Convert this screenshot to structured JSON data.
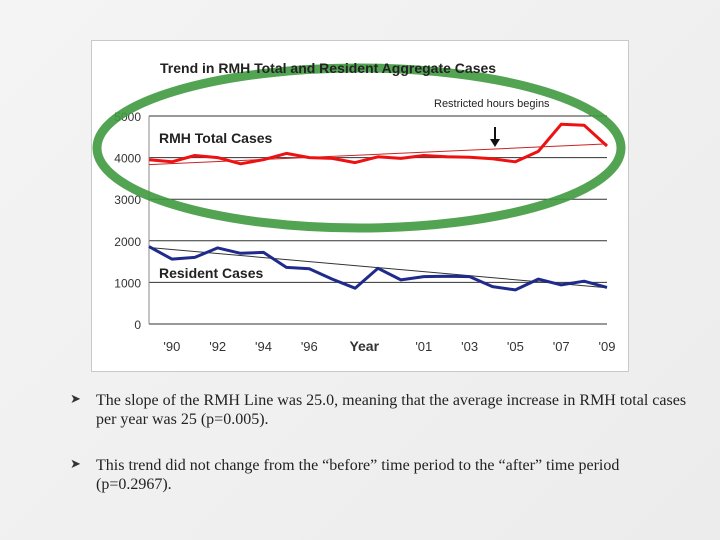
{
  "chart_data": {
    "type": "line",
    "title": "Trend in RMH Total and Resident Aggregate Cases",
    "xlabel": "Year",
    "ylabel": "",
    "x": [
      1989,
      1990,
      1991,
      1992,
      1993,
      1994,
      1995,
      1996,
      1997,
      1998,
      1999,
      2000,
      2001,
      2002,
      2003,
      2004,
      2005,
      2006,
      2007,
      2008,
      2009
    ],
    "x_tick_labels": [
      "'90",
      "'92",
      "'94",
      "'96",
      "Year",
      "'01",
      "'03",
      "'05",
      "'07",
      "'09"
    ],
    "y_ticks": [
      "5000",
      "4000",
      "3000",
      "2000",
      "1000",
      "0"
    ],
    "ylim": [
      0,
      5000
    ],
    "grid": true,
    "series": [
      {
        "name": "RMH Total Cases",
        "color": "#ee1111",
        "values": [
          3950,
          3900,
          4050,
          4000,
          3850,
          3950,
          4100,
          4000,
          3980,
          3880,
          4020,
          3980,
          4050,
          4020,
          4010,
          3970,
          3900,
          4150,
          4800,
          4780,
          4280
        ],
        "trend": [
          3830,
          4330
        ]
      },
      {
        "name": "Resident Cases",
        "color": "#1f2b8c",
        "values": [
          1860,
          1560,
          1600,
          1830,
          1700,
          1720,
          1360,
          1330,
          1080,
          860,
          1340,
          1060,
          1140,
          1150,
          1140,
          900,
          820,
          1080,
          940,
          1030,
          880
        ],
        "trend": [
          1840,
          870
        ]
      }
    ],
    "annotations": [
      "Restricted hours begins"
    ]
  },
  "bullets": [
    "The slope of the RMH Line was 25.0, meaning that the average increase in RMH total cases per year was 25 (p=0.005).",
    "This trend did not change from the “before” time period to the “after” time period (p=0.2967)."
  ],
  "bullet_icon": "bullet-arrow-icon",
  "colors": {
    "highlight_ellipse": "#3f9a3f",
    "gridline": "#333333"
  }
}
